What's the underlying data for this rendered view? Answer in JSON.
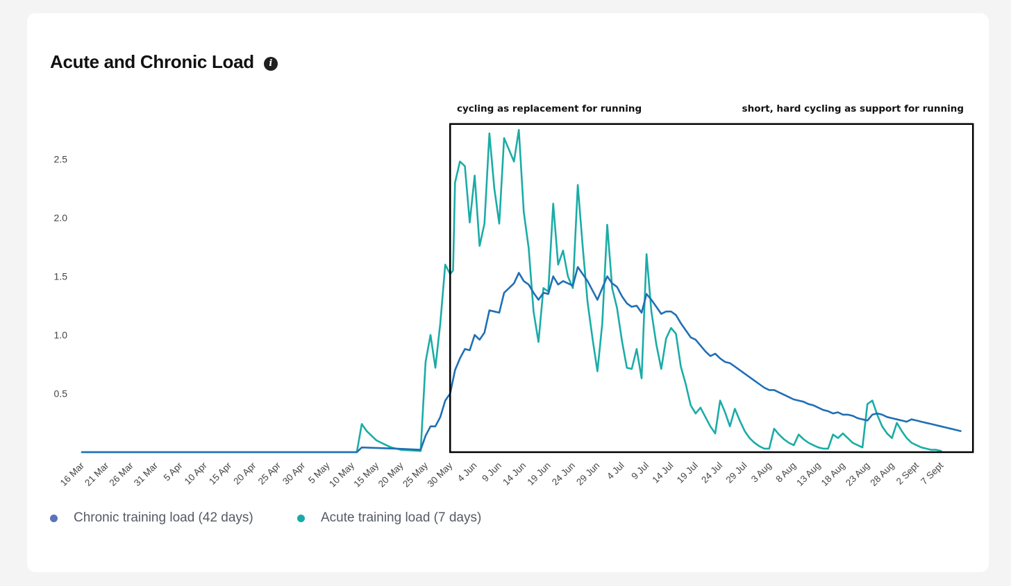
{
  "header": {
    "title": "Acute and Chronic Load",
    "info_icon": "info-icon"
  },
  "annotations": {
    "left": "cycling as replacement for running",
    "right": "short, hard cycling as support for running"
  },
  "legend": [
    {
      "label": "Chronic training load (42 days)",
      "color": "#5b74b8"
    },
    {
      "label": "Acute training load (7 days)",
      "color": "#19aaa8"
    }
  ],
  "colors": {
    "chronic_line": "#1f6fb5",
    "acute_line": "#1aaca6",
    "box": "#000000",
    "axis_text": "#444444"
  },
  "chart_data": {
    "type": "line",
    "title": "Acute and Chronic Load",
    "xlabel": "",
    "ylabel": "",
    "ylim": [
      0,
      2.75
    ],
    "yticks": [
      "0.5",
      "1.0",
      "1.5",
      "2.0",
      "2.5"
    ],
    "ytick_values": [
      0.5,
      1.0,
      1.5,
      2.0,
      2.5
    ],
    "x_day_range": [
      0,
      179
    ],
    "xticks": [
      {
        "label": "16 Mar",
        "day": 0
      },
      {
        "label": "21 Mar",
        "day": 5
      },
      {
        "label": "26 Mar",
        "day": 10
      },
      {
        "label": "31 Mar",
        "day": 15
      },
      {
        "label": "5 Apr",
        "day": 20
      },
      {
        "label": "10 Apr",
        "day": 25
      },
      {
        "label": "15 Apr",
        "day": 30
      },
      {
        "label": "20 Apr",
        "day": 35
      },
      {
        "label": "25 Apr",
        "day": 40
      },
      {
        "label": "30 Apr",
        "day": 45
      },
      {
        "label": "5 May",
        "day": 50
      },
      {
        "label": "10 May",
        "day": 55
      },
      {
        "label": "15 May",
        "day": 60
      },
      {
        "label": "20 May",
        "day": 65
      },
      {
        "label": "25 May",
        "day": 70
      },
      {
        "label": "30 May",
        "day": 75
      },
      {
        "label": "4 Jun",
        "day": 80
      },
      {
        "label": "9 Jun",
        "day": 85
      },
      {
        "label": "14 Jun",
        "day": 90
      },
      {
        "label": "19 Jun",
        "day": 95
      },
      {
        "label": "24 Jun",
        "day": 100
      },
      {
        "label": "29 Jun",
        "day": 105
      },
      {
        "label": "4 Jul",
        "day": 110
      },
      {
        "label": "9 Jul",
        "day": 115
      },
      {
        "label": "14 Jul",
        "day": 120
      },
      {
        "label": "19 Jul",
        "day": 125
      },
      {
        "label": "24 Jul",
        "day": 130
      },
      {
        "label": "29 Jul",
        "day": 135
      },
      {
        "label": "3 Aug",
        "day": 140
      },
      {
        "label": "8 Aug",
        "day": 145
      },
      {
        "label": "13 Aug",
        "day": 150
      },
      {
        "label": "18 Aug",
        "day": 155
      },
      {
        "label": "23 Aug",
        "day": 160
      },
      {
        "label": "28 Aug",
        "day": 165
      },
      {
        "label": "2 Sept",
        "day": 170
      },
      {
        "label": "7 Sept",
        "day": 175
      }
    ],
    "highlight_box": {
      "day_start": 75,
      "day_end": 181.5,
      "y_top": 2.8,
      "y_bottom": 0
    },
    "series": [
      {
        "name": "Chronic training load (42 days)",
        "points": [
          [
            0,
            0
          ],
          [
            56,
            0
          ],
          [
            57,
            0.04
          ],
          [
            64,
            0.03
          ],
          [
            69,
            0.02
          ],
          [
            70,
            0.14
          ],
          [
            71,
            0.22
          ],
          [
            72,
            0.22
          ],
          [
            73,
            0.3
          ],
          [
            74,
            0.44
          ],
          [
            75,
            0.5
          ],
          [
            76,
            0.7
          ],
          [
            77,
            0.8
          ],
          [
            78,
            0.88
          ],
          [
            79,
            0.87
          ],
          [
            80,
            1.0
          ],
          [
            81,
            0.96
          ],
          [
            82,
            1.02
          ],
          [
            83,
            1.21
          ],
          [
            84,
            1.2
          ],
          [
            85,
            1.19
          ],
          [
            86,
            1.36
          ],
          [
            87,
            1.4
          ],
          [
            88,
            1.44
          ],
          [
            89,
            1.53
          ],
          [
            90,
            1.46
          ],
          [
            91,
            1.43
          ],
          [
            92,
            1.36
          ],
          [
            93,
            1.3
          ],
          [
            94,
            1.36
          ],
          [
            95,
            1.35
          ],
          [
            96,
            1.5
          ],
          [
            97,
            1.43
          ],
          [
            98,
            1.46
          ],
          [
            99,
            1.44
          ],
          [
            100,
            1.42
          ],
          [
            101,
            1.58
          ],
          [
            102,
            1.52
          ],
          [
            103,
            1.46
          ],
          [
            104,
            1.38
          ],
          [
            105,
            1.3
          ],
          [
            106,
            1.4
          ],
          [
            107,
            1.5
          ],
          [
            108,
            1.44
          ],
          [
            109,
            1.41
          ],
          [
            110,
            1.33
          ],
          [
            111,
            1.27
          ],
          [
            112,
            1.24
          ],
          [
            113,
            1.25
          ],
          [
            114,
            1.19
          ],
          [
            115,
            1.35
          ],
          [
            116,
            1.3
          ],
          [
            117,
            1.24
          ],
          [
            118,
            1.18
          ],
          [
            119,
            1.2
          ],
          [
            120,
            1.2
          ],
          [
            121,
            1.17
          ],
          [
            122,
            1.1
          ],
          [
            123,
            1.04
          ],
          [
            124,
            0.98
          ],
          [
            125,
            0.96
          ],
          [
            126,
            0.91
          ],
          [
            127,
            0.86
          ],
          [
            128,
            0.82
          ],
          [
            129,
            0.84
          ],
          [
            130,
            0.8
          ],
          [
            131,
            0.77
          ],
          [
            132,
            0.76
          ],
          [
            133,
            0.73
          ],
          [
            134,
            0.7
          ],
          [
            135,
            0.67
          ],
          [
            136,
            0.64
          ],
          [
            137,
            0.61
          ],
          [
            138,
            0.58
          ],
          [
            139,
            0.55
          ],
          [
            140,
            0.53
          ],
          [
            141,
            0.53
          ],
          [
            142,
            0.51
          ],
          [
            143,
            0.49
          ],
          [
            144,
            0.47
          ],
          [
            145,
            0.45
          ],
          [
            146,
            0.44
          ],
          [
            147,
            0.43
          ],
          [
            148,
            0.41
          ],
          [
            149,
            0.4
          ],
          [
            150,
            0.38
          ],
          [
            151,
            0.36
          ],
          [
            152,
            0.35
          ],
          [
            153,
            0.33
          ],
          [
            154,
            0.34
          ],
          [
            155,
            0.32
          ],
          [
            156,
            0.32
          ],
          [
            157,
            0.31
          ],
          [
            158,
            0.29
          ],
          [
            159,
            0.28
          ],
          [
            160,
            0.27
          ],
          [
            161,
            0.32
          ],
          [
            162,
            0.33
          ],
          [
            163,
            0.32
          ],
          [
            164,
            0.3
          ],
          [
            165,
            0.29
          ],
          [
            166,
            0.28
          ],
          [
            167,
            0.27
          ],
          [
            168,
            0.26
          ],
          [
            169,
            0.28
          ],
          [
            170,
            0.27
          ],
          [
            171,
            0.26
          ],
          [
            172,
            0.25
          ],
          [
            173,
            0.24
          ],
          [
            174,
            0.23
          ],
          [
            175,
            0.22
          ],
          [
            176,
            0.21
          ],
          [
            177,
            0.2
          ],
          [
            178,
            0.19
          ],
          [
            179,
            0.18
          ]
        ]
      },
      {
        "name": "Acute training load (7 days)",
        "points": [
          [
            0,
            0
          ],
          [
            56,
            0
          ],
          [
            57,
            0.24
          ],
          [
            58,
            0.18
          ],
          [
            59,
            0.14
          ],
          [
            60,
            0.1
          ],
          [
            61,
            0.08
          ],
          [
            62,
            0.06
          ],
          [
            63,
            0.04
          ],
          [
            64,
            0.03
          ],
          [
            65,
            0.02
          ],
          [
            69,
            0.01
          ],
          [
            70,
            0.77
          ],
          [
            71,
            1.0
          ],
          [
            72,
            0.72
          ],
          [
            73,
            1.1
          ],
          [
            74,
            1.6
          ],
          [
            75,
            1.52
          ],
          [
            75.6,
            1.55
          ],
          [
            76,
            2.3
          ],
          [
            77,
            2.48
          ],
          [
            78,
            2.44
          ],
          [
            79,
            1.96
          ],
          [
            80,
            2.36
          ],
          [
            81,
            1.76
          ],
          [
            82,
            1.95
          ],
          [
            83,
            2.72
          ],
          [
            84,
            2.25
          ],
          [
            85,
            1.95
          ],
          [
            86,
            2.68
          ],
          [
            87,
            2.58
          ],
          [
            88,
            2.48
          ],
          [
            89,
            2.75
          ],
          [
            90,
            2.05
          ],
          [
            91,
            1.74
          ],
          [
            92,
            1.2
          ],
          [
            93,
            0.94
          ],
          [
            94,
            1.4
          ],
          [
            95,
            1.37
          ],
          [
            96,
            2.12
          ],
          [
            97,
            1.6
          ],
          [
            98,
            1.72
          ],
          [
            99,
            1.5
          ],
          [
            100,
            1.4
          ],
          [
            101,
            2.28
          ],
          [
            102,
            1.76
          ],
          [
            103,
            1.28
          ],
          [
            104,
            0.97
          ],
          [
            105,
            0.69
          ],
          [
            106,
            1.1
          ],
          [
            107,
            1.94
          ],
          [
            108,
            1.4
          ],
          [
            109,
            1.23
          ],
          [
            110,
            0.95
          ],
          [
            111,
            0.72
          ],
          [
            112,
            0.71
          ],
          [
            113,
            0.88
          ],
          [
            114,
            0.63
          ],
          [
            115,
            1.69
          ],
          [
            116,
            1.2
          ],
          [
            117,
            0.92
          ],
          [
            118,
            0.71
          ],
          [
            119,
            0.97
          ],
          [
            120,
            1.06
          ],
          [
            121,
            1.01
          ],
          [
            122,
            0.73
          ],
          [
            123,
            0.58
          ],
          [
            124,
            0.4
          ],
          [
            125,
            0.33
          ],
          [
            126,
            0.38
          ],
          [
            127,
            0.3
          ],
          [
            128,
            0.22
          ],
          [
            129,
            0.16
          ],
          [
            130,
            0.44
          ],
          [
            131,
            0.34
          ],
          [
            132,
            0.22
          ],
          [
            133,
            0.37
          ],
          [
            134,
            0.27
          ],
          [
            135,
            0.18
          ],
          [
            136,
            0.12
          ],
          [
            137,
            0.08
          ],
          [
            138,
            0.05
          ],
          [
            139,
            0.03
          ],
          [
            140,
            0.03
          ],
          [
            141,
            0.2
          ],
          [
            142,
            0.15
          ],
          [
            143,
            0.11
          ],
          [
            144,
            0.08
          ],
          [
            145,
            0.06
          ],
          [
            146,
            0.15
          ],
          [
            147,
            0.11
          ],
          [
            148,
            0.08
          ],
          [
            149,
            0.06
          ],
          [
            150,
            0.04
          ],
          [
            151,
            0.03
          ],
          [
            152,
            0.03
          ],
          [
            153,
            0.15
          ],
          [
            154,
            0.12
          ],
          [
            155,
            0.16
          ],
          [
            156,
            0.12
          ],
          [
            157,
            0.08
          ],
          [
            158,
            0.06
          ],
          [
            159,
            0.04
          ],
          [
            160,
            0.41
          ],
          [
            161,
            0.44
          ],
          [
            162,
            0.32
          ],
          [
            163,
            0.22
          ],
          [
            164,
            0.16
          ],
          [
            165,
            0.12
          ],
          [
            166,
            0.25
          ],
          [
            167,
            0.18
          ],
          [
            168,
            0.12
          ],
          [
            169,
            0.08
          ],
          [
            170,
            0.06
          ],
          [
            171,
            0.04
          ],
          [
            172,
            0.03
          ],
          [
            173,
            0.02
          ],
          [
            174,
            0.02
          ],
          [
            175,
            0.01
          ]
        ]
      }
    ]
  }
}
